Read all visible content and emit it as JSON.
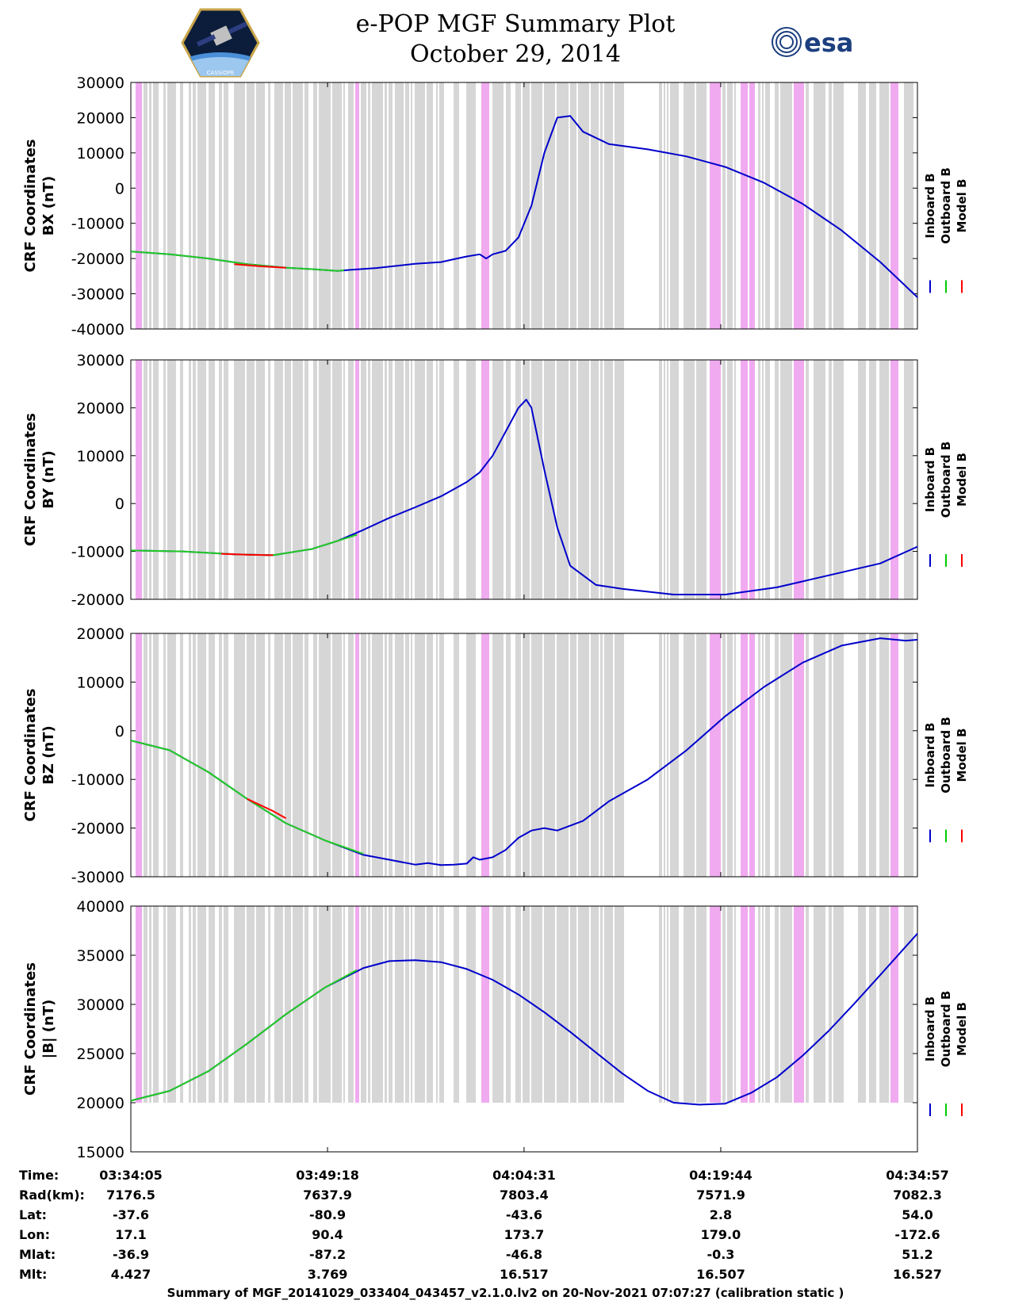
{
  "header": {
    "title_line1": "e-POP MGF Summary Plot",
    "title_line2": "October 29, 2014",
    "logo_left": "cassiope-mission-patch",
    "logo_left_text": "CASSIOPE",
    "logo_right": "esa-logo",
    "logo_right_text": "esa"
  },
  "legend": {
    "labels": [
      "Inboard B",
      "Outboard B",
      "Model B"
    ],
    "colors": [
      "#0000cc",
      "#00cc00",
      "#ff0000"
    ]
  },
  "colors": {
    "inboard": "#0000cc",
    "outboard": "#22cc22",
    "model": "#ff0000",
    "data_gap_gray": "#d6d6d6",
    "data_gap_pink": "#f0aaf0"
  },
  "chart_data": [
    {
      "type": "line",
      "ylabel_line1": "CRF Coordinates",
      "ylabel_line2": "BX (nT)",
      "ylim": [
        -40000,
        30000
      ],
      "yticks": [
        -40000,
        -30000,
        -20000,
        -10000,
        0,
        10000,
        20000,
        30000
      ],
      "x_minutes": [
        0,
        15.22,
        30.43,
        45.65,
        60.87
      ],
      "series": [
        {
          "name": "Inboard B",
          "x": [
            0,
            3,
            6,
            9,
            12,
            14,
            16,
            17,
            19,
            22,
            24,
            25,
            26,
            27,
            27.5,
            28,
            29,
            30,
            31,
            32,
            33,
            34,
            35,
            37,
            40,
            43,
            46,
            49,
            52,
            55,
            58,
            60.87
          ],
          "y": [
            -18000,
            -18800,
            -20000,
            -21600,
            -22600,
            -23000,
            -23500,
            -23200,
            -22700,
            -21500,
            -21000,
            -20200,
            -19400,
            -18800,
            -20000,
            -18800,
            -17800,
            -14000,
            -5000,
            10000,
            20000,
            20500,
            16000,
            12500,
            11000,
            9000,
            6000,
            1500,
            -4500,
            -12000,
            -21000,
            -31000
          ]
        },
        {
          "name": "Outboard B",
          "x": [
            0,
            3,
            6,
            9,
            12,
            14,
            16,
            16.5
          ],
          "y": [
            -18000,
            -18800,
            -20000,
            -21600,
            -22600,
            -23000,
            -23500,
            -23300
          ]
        },
        {
          "name": "Model B",
          "x": [
            8,
            10,
            12
          ],
          "y": [
            -21600,
            -22200,
            -22600
          ]
        }
      ]
    },
    {
      "type": "line",
      "ylabel_line1": "CRF Coordinates",
      "ylabel_line2": "BY (nT)",
      "ylim": [
        -20000,
        30000
      ],
      "yticks": [
        -20000,
        -10000,
        0,
        10000,
        20000,
        30000
      ],
      "x_minutes": [
        0,
        15.22,
        30.43,
        45.65,
        60.87
      ],
      "series": [
        {
          "name": "Inboard B",
          "x": [
            0,
            4,
            8,
            11,
            14,
            16,
            18,
            20,
            22,
            24,
            25,
            26,
            27,
            28,
            29,
            30,
            30.6,
            31,
            32,
            33,
            34,
            36,
            38,
            42,
            46,
            50,
            54,
            58,
            60.87
          ],
          "y": [
            -9800,
            -10000,
            -10600,
            -10800,
            -9500,
            -7800,
            -5500,
            -3000,
            -800,
            1500,
            3000,
            4500,
            6500,
            10000,
            15000,
            20000,
            21700,
            20000,
            7000,
            -5000,
            -13000,
            -17000,
            -17800,
            -19000,
            -19000,
            -17500,
            -15000,
            -12500,
            -9000
          ]
        },
        {
          "name": "Outboard B",
          "x": [
            0,
            4,
            8,
            11,
            14,
            16,
            17.5
          ],
          "y": [
            -9800,
            -10000,
            -10600,
            -10800,
            -9500,
            -7800,
            -6500
          ]
        },
        {
          "name": "Model B",
          "x": [
            7,
            9,
            11
          ],
          "y": [
            -10500,
            -10700,
            -10800
          ]
        }
      ]
    },
    {
      "type": "line",
      "ylabel_line1": "CRF Coordinates",
      "ylabel_line2": "BZ (nT)",
      "ylim": [
        -30000,
        20000
      ],
      "yticks": [
        -30000,
        -20000,
        -10000,
        0,
        10000,
        20000
      ],
      "x_minutes": [
        0,
        15.22,
        30.43,
        45.65,
        60.87
      ],
      "series": [
        {
          "name": "Inboard B",
          "x": [
            0,
            3,
            6,
            9,
            12,
            15,
            18,
            20,
            22,
            23,
            24,
            25,
            26,
            26.5,
            27,
            28,
            29,
            30,
            31,
            32,
            33,
            35,
            37,
            40,
            43,
            46,
            49,
            52,
            55,
            58,
            60,
            60.87
          ],
          "y": [
            -2000,
            -4000,
            -8500,
            -14000,
            -19000,
            -22500,
            -25500,
            -26500,
            -27500,
            -27200,
            -27600,
            -27500,
            -27300,
            -26000,
            -26500,
            -26000,
            -24500,
            -22000,
            -20500,
            -20000,
            -20500,
            -18500,
            -14500,
            -10000,
            -4000,
            3000,
            9000,
            14000,
            17500,
            19000,
            18500,
            18700
          ]
        },
        {
          "name": "Outboard B",
          "x": [
            0,
            3,
            6,
            9,
            12,
            15,
            18
          ],
          "y": [
            -2000,
            -4000,
            -8500,
            -14000,
            -19000,
            -22500,
            -25300
          ]
        },
        {
          "name": "Model B",
          "x": [
            9,
            11,
            12
          ],
          "y": [
            -14000,
            -16500,
            -18000
          ]
        }
      ]
    },
    {
      "type": "line",
      "ylabel_line1": "CRF Coordinates",
      "ylabel_line2": "|B| (nT)",
      "ylim": [
        15000,
        40000
      ],
      "yticks": [
        15000,
        20000,
        25000,
        30000,
        35000,
        40000
      ],
      "x_minutes": [
        0,
        15.22,
        30.43,
        45.65,
        60.87
      ],
      "series": [
        {
          "name": "Inboard B",
          "x": [
            0,
            3,
            6,
            9,
            12,
            15,
            18,
            20,
            22,
            24,
            26,
            28,
            30,
            32,
            34,
            36,
            38,
            40,
            42,
            44,
            46,
            48,
            50,
            52,
            54,
            56,
            58,
            60.87
          ],
          "y": [
            20200,
            21200,
            23200,
            26000,
            29000,
            31700,
            33700,
            34400,
            34500,
            34300,
            33600,
            32500,
            31000,
            29200,
            27200,
            25100,
            23000,
            21200,
            20000,
            19800,
            19900,
            21000,
            22600,
            24800,
            27300,
            30100,
            33000,
            37200
          ]
        },
        {
          "name": "Outboard B",
          "x": [
            0,
            3,
            6,
            9,
            12,
            15,
            17.5
          ],
          "y": [
            20200,
            21200,
            23200,
            26000,
            29000,
            31700,
            33500
          ]
        }
      ]
    }
  ],
  "xaxis_table": {
    "row_labels": [
      "Time:",
      "Rad(km):",
      "Lat:",
      "Lon:",
      "Mlat:",
      "Mlt:"
    ],
    "columns": [
      [
        "03:34:05",
        "7176.5",
        "-37.6",
        "17.1",
        "-36.9",
        "4.427"
      ],
      [
        "03:49:18",
        "7637.9",
        "-80.9",
        "90.4",
        "-87.2",
        "3.769"
      ],
      [
        "04:04:31",
        "7803.4",
        "-43.6",
        "173.7",
        "-46.8",
        "16.517"
      ],
      [
        "04:19:44",
        "7571.9",
        "2.8",
        "179.0",
        "-0.3",
        "16.507"
      ],
      [
        "04:34:57",
        "7082.3",
        "54.0",
        "-172.6",
        "51.2",
        "16.527"
      ]
    ]
  },
  "footer": "Summary of MGF_20141029_033404_043457_v2.1.0.lv2 on 20-Nov-2021 07:07:27 (calibration static )"
}
